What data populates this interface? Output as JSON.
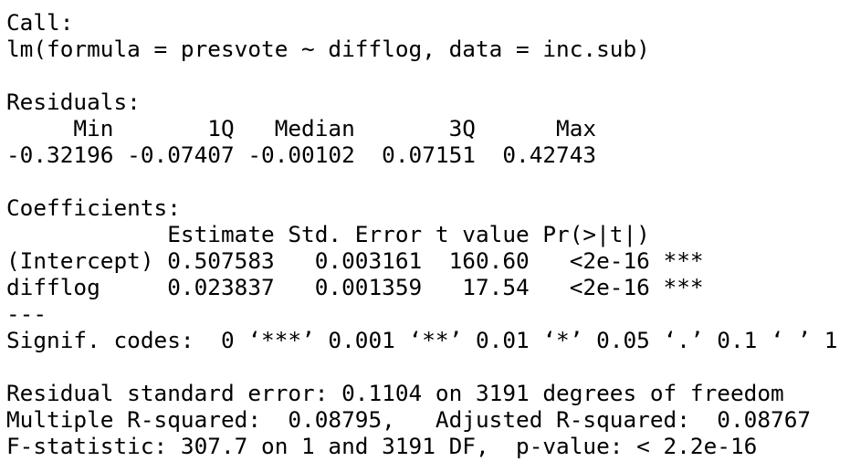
{
  "output": {
    "lines": [
      "Call:",
      "lm(formula = presvote ~ difflog, data = inc.sub)",
      "",
      "Residuals:",
      "     Min       1Q   Median       3Q      Max ",
      "-0.32196 -0.07407 -0.00102  0.07151  0.42743 ",
      "",
      "Coefficients:",
      "            Estimate Std. Error t value Pr(>|t|)    ",
      "(Intercept) 0.507583   0.003161  160.60   <2e-16 ***",
      "difflog     0.023837   0.001359   17.54   <2e-16 ***",
      "---",
      "Signif. codes:  0 ‘***’ 0.001 ‘**’ 0.01 ‘*’ 0.05 ‘.’ 0.1 ‘ ’ 1",
      "",
      "Residual standard error: 0.1104 on 3191 degrees of freedom",
      "Multiple R-squared:  0.08795,\tAdjusted R-squared:  0.08767 ",
      "F-statistic: 307.7 on 1 and 3191 DF,  p-value: < 2.2e-16"
    ]
  }
}
